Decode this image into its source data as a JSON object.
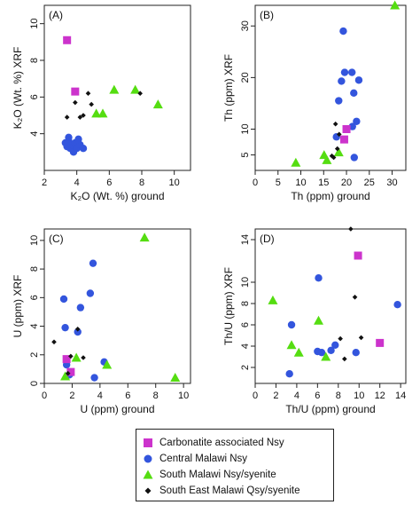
{
  "colors": {
    "carbonatite": "#cc33cc",
    "central": "#3355dd",
    "south": "#55dd11",
    "southeast": "#111111"
  },
  "legend": [
    {
      "key": "carbonatite",
      "label": "Carbonatite associated  Nsy",
      "shape": "square"
    },
    {
      "key": "central",
      "label": "Central  Malawi  Nsy",
      "shape": "circle"
    },
    {
      "key": "south",
      "label": "South  Malawi  Nsy/syenite",
      "shape": "triangle"
    },
    {
      "key": "southeast",
      "label": "South East Malawi  Qsy/syenite",
      "shape": "diamond"
    }
  ],
  "chart_data": [
    {
      "type": "scatter",
      "panel": "(A)",
      "xlabel": "K₂O (Wt. %) ground",
      "ylabel": "K₂O (Wt. %) XRF",
      "xlim": [
        2,
        11
      ],
      "ylim": [
        2,
        11
      ],
      "xticks": [
        2,
        4,
        6,
        8,
        10
      ],
      "yticks": [
        4,
        6,
        8,
        10
      ],
      "series": [
        {
          "key": "carbonatite",
          "shape": "square",
          "points": [
            [
              3.4,
              9.1
            ],
            [
              3.9,
              6.3
            ]
          ]
        },
        {
          "key": "central",
          "shape": "circle",
          "points": [
            [
              3.3,
              3.5
            ],
            [
              3.4,
              3.3
            ],
            [
              3.5,
              3.6
            ],
            [
              3.6,
              3.2
            ],
            [
              3.7,
              3.4
            ],
            [
              3.8,
              3.0
            ],
            [
              3.9,
              3.5
            ],
            [
              4.0,
              3.2
            ],
            [
              4.2,
              3.4
            ],
            [
              4.4,
              3.2
            ],
            [
              4.1,
              3.7
            ],
            [
              3.5,
              3.8
            ]
          ]
        },
        {
          "key": "south",
          "shape": "triangle",
          "points": [
            [
              5.2,
              5.1
            ],
            [
              5.6,
              5.1
            ],
            [
              6.3,
              6.4
            ],
            [
              7.6,
              6.4
            ],
            [
              9.0,
              5.6
            ]
          ]
        },
        {
          "key": "southeast",
          "shape": "diamond",
          "points": [
            [
              3.4,
              4.9
            ],
            [
              3.9,
              5.7
            ],
            [
              4.2,
              4.9
            ],
            [
              4.4,
              5.0
            ],
            [
              4.7,
              6.2
            ],
            [
              4.9,
              5.6
            ],
            [
              7.9,
              6.2
            ]
          ]
        }
      ]
    },
    {
      "type": "scatter",
      "panel": "(B)",
      "xlabel": "Th  (ppm) ground",
      "ylabel": "Th  (ppm) XRF",
      "xlim": [
        0,
        33
      ],
      "ylim": [
        2,
        34
      ],
      "xticks": [
        0,
        5,
        10,
        15,
        20,
        25,
        30
      ],
      "yticks": [
        5,
        10,
        20,
        30
      ],
      "series": [
        {
          "key": "carbonatite",
          "shape": "square",
          "points": [
            [
              19.5,
              8.0
            ],
            [
              20.0,
              10.0
            ]
          ]
        },
        {
          "key": "central",
          "shape": "circle",
          "points": [
            [
              19.3,
              29.0
            ],
            [
              19.6,
              21.0
            ],
            [
              18.9,
              19.3
            ],
            [
              21.2,
              21.0
            ],
            [
              22.7,
              19.5
            ],
            [
              21.6,
              17.0
            ],
            [
              17.8,
              8.5
            ],
            [
              21.3,
              10.5
            ],
            [
              22.2,
              11.5
            ],
            [
              18.3,
              15.5
            ],
            [
              21.7,
              4.5
            ]
          ]
        },
        {
          "key": "south",
          "shape": "triangle",
          "points": [
            [
              30.6,
              34.0
            ],
            [
              8.9,
              3.5
            ],
            [
              15.1,
              5.0
            ],
            [
              15.7,
              4.0
            ],
            [
              18.3,
              5.5
            ]
          ]
        },
        {
          "key": "southeast",
          "shape": "diamond",
          "points": [
            [
              17.6,
              11.0
            ],
            [
              18.0,
              6.2
            ],
            [
              17.2,
              4.5
            ],
            [
              16.8,
              4.8
            ],
            [
              18.4,
              9.0
            ]
          ]
        }
      ]
    },
    {
      "type": "scatter",
      "panel": "(C)",
      "xlabel": "U  (ppm) ground",
      "ylabel": "U  (ppm) XRF",
      "xlim": [
        0,
        10.5
      ],
      "ylim": [
        0,
        10.8
      ],
      "xticks": [
        0,
        2,
        4,
        6,
        8,
        10
      ],
      "yticks": [
        0,
        2,
        4,
        6,
        8,
        10
      ],
      "series": [
        {
          "key": "carbonatite",
          "shape": "square",
          "points": [
            [
              1.6,
              1.7
            ],
            [
              1.9,
              0.8
            ]
          ]
        },
        {
          "key": "central",
          "shape": "circle",
          "points": [
            [
              1.4,
              5.9
            ],
            [
              1.6,
              1.3
            ],
            [
              1.8,
              0.6
            ],
            [
              2.6,
              5.3
            ],
            [
              3.3,
              6.3
            ],
            [
              3.5,
              8.4
            ],
            [
              3.6,
              0.4
            ],
            [
              2.4,
              3.6
            ],
            [
              4.3,
              1.5
            ],
            [
              1.5,
              3.9
            ]
          ]
        },
        {
          "key": "south",
          "shape": "triangle",
          "points": [
            [
              7.2,
              10.2
            ],
            [
              9.4,
              0.4
            ],
            [
              2.3,
              1.8
            ],
            [
              4.5,
              1.3
            ],
            [
              1.5,
              0.5
            ]
          ]
        },
        {
          "key": "southeast",
          "shape": "diamond",
          "points": [
            [
              0.7,
              2.9
            ],
            [
              2.4,
              3.8
            ],
            [
              1.7,
              0.7
            ],
            [
              1.9,
              1.9
            ],
            [
              2.8,
              1.8
            ]
          ]
        }
      ]
    },
    {
      "type": "scatter",
      "panel": "(D)",
      "xlabel": "Th/U  (ppm) ground",
      "ylabel": "Th/U  (ppm) XRF",
      "xlim": [
        0,
        14.5
      ],
      "ylim": [
        0.5,
        15
      ],
      "xticks": [
        0,
        2,
        4,
        6,
        8,
        10,
        12,
        14
      ],
      "yticks": [
        2,
        4,
        6,
        8,
        10,
        14
      ],
      "series": [
        {
          "key": "carbonatite",
          "shape": "square",
          "points": [
            [
              9.9,
              12.5
            ],
            [
              12.0,
              4.3
            ]
          ]
        },
        {
          "key": "central",
          "shape": "circle",
          "points": [
            [
              3.5,
              6.0
            ],
            [
              3.3,
              1.4
            ],
            [
              6.1,
              10.4
            ],
            [
              6.0,
              3.5
            ],
            [
              6.4,
              3.4
            ],
            [
              7.3,
              3.6
            ],
            [
              7.7,
              4.1
            ],
            [
              9.7,
              3.4
            ],
            [
              13.7,
              7.9
            ]
          ]
        },
        {
          "key": "south",
          "shape": "triangle",
          "points": [
            [
              1.7,
              8.3
            ],
            [
              3.5,
              4.1
            ],
            [
              4.2,
              3.4
            ],
            [
              6.1,
              6.4
            ],
            [
              6.8,
              3.0
            ]
          ]
        },
        {
          "key": "southeast",
          "shape": "diamond",
          "points": [
            [
              9.2,
              15.0
            ],
            [
              9.6,
              8.6
            ],
            [
              8.2,
              4.7
            ],
            [
              8.6,
              2.8
            ],
            [
              10.2,
              4.8
            ]
          ]
        }
      ]
    }
  ]
}
